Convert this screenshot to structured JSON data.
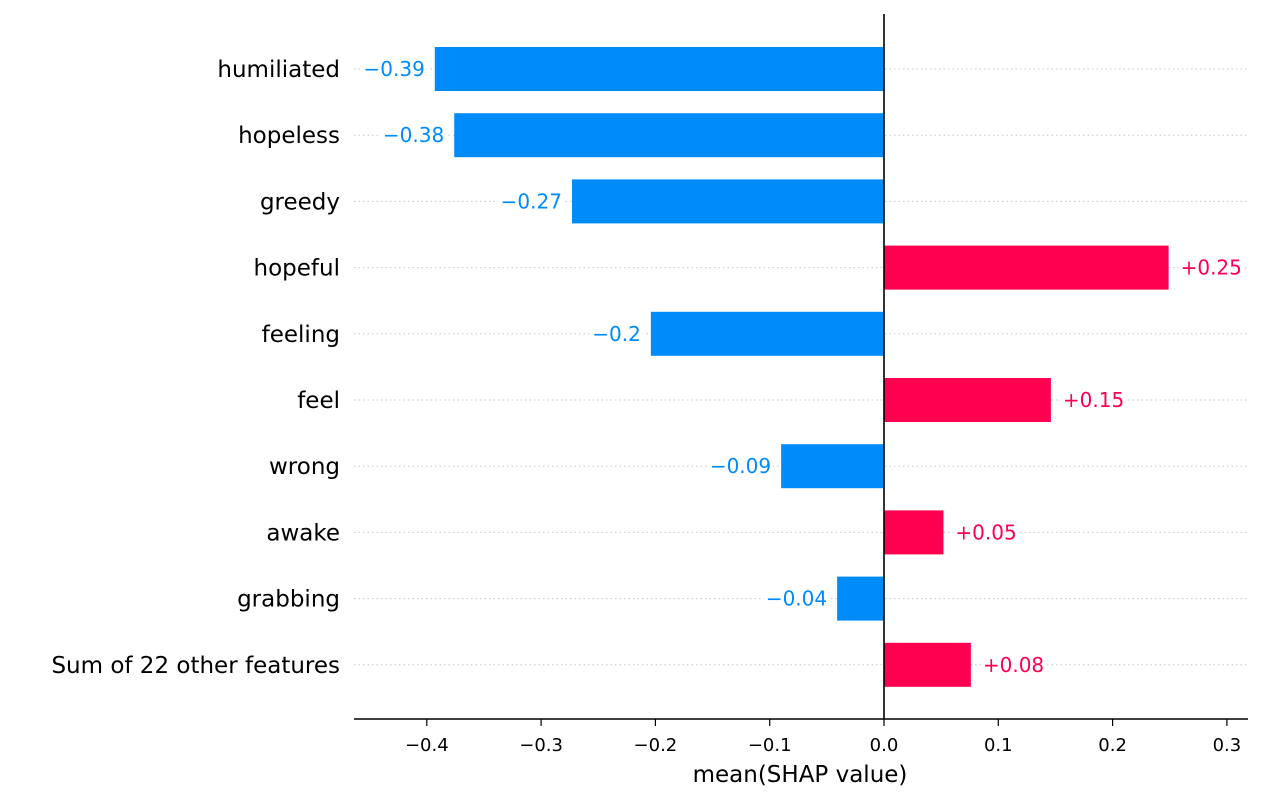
{
  "chart_data": {
    "type": "bar",
    "orientation": "horizontal",
    "xlabel": "mean(SHAP value)",
    "xlim": [
      -0.46,
      0.32
    ],
    "xticks": [
      -0.4,
      -0.3,
      -0.2,
      -0.1,
      0.0,
      0.1,
      0.2,
      0.3
    ],
    "xtick_labels": [
      "−0.4",
      "−0.3",
      "−0.2",
      "−0.1",
      "0.0",
      "0.1",
      "0.2",
      "0.3"
    ],
    "grid": "horizontal-dotted",
    "colors": {
      "negative": "#008bfb",
      "positive": "#ff0051"
    },
    "bars": [
      {
        "label": "humiliated",
        "value": -0.393,
        "text": "−0.39"
      },
      {
        "label": "hopeless",
        "value": -0.376,
        "text": "−0.38"
      },
      {
        "label": "greedy",
        "value": -0.273,
        "text": "−0.27"
      },
      {
        "label": "hopeful",
        "value": 0.249,
        "text": "+0.25"
      },
      {
        "label": "feeling",
        "value": -0.204,
        "text": "−0.2"
      },
      {
        "label": "feel",
        "value": 0.146,
        "text": "+0.15"
      },
      {
        "label": "wrong",
        "value": -0.09,
        "text": "−0.09"
      },
      {
        "label": "awake",
        "value": 0.052,
        "text": "+0.05"
      },
      {
        "label": "grabbing",
        "value": -0.041,
        "text": "−0.04"
      },
      {
        "label": "Sum of 22 other features",
        "value": 0.076,
        "text": "+0.08"
      }
    ]
  }
}
